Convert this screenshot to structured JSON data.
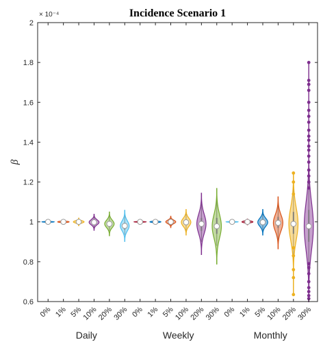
{
  "chart_data": {
    "type": "violin",
    "title": "Incidence Scenario 1",
    "ylabel": "β",
    "y_exponent": "× 10⁻⁴",
    "ylim": [
      0.6,
      2.0
    ],
    "yticks": [
      0.6,
      0.8,
      1,
      1.2,
      1.4,
      1.6,
      1.8,
      2
    ],
    "ytick_labels": [
      "0.6",
      "0.8",
      "1",
      "1.2",
      "1.4",
      "1.6",
      "1.8",
      "2"
    ],
    "grid": false,
    "groups": [
      "Daily",
      "Weekly",
      "Monthly"
    ],
    "categories": [
      "0%",
      "1%",
      "5%",
      "10%",
      "20%",
      "30%",
      "0%",
      "1%",
      "5%",
      "10%",
      "20%",
      "30%",
      "0%",
      "1%",
      "5%",
      "10%",
      "20%",
      "30%"
    ],
    "series": [
      {
        "group": "Daily",
        "noise": "0%",
        "median": 1.0,
        "q1": 0.999,
        "q3": 1.001,
        "min": 0.995,
        "max": 1.005,
        "width": 0.8,
        "color": "#0072BD"
      },
      {
        "group": "Daily",
        "noise": "1%",
        "median": 1.0,
        "q1": 0.998,
        "q3": 1.002,
        "min": 0.994,
        "max": 1.006,
        "width": 0.75,
        "color": "#D95319"
      },
      {
        "group": "Daily",
        "noise": "5%",
        "median": 1.0,
        "q1": 0.996,
        "q3": 1.004,
        "min": 0.988,
        "max": 1.012,
        "width": 0.7,
        "color": "#EDB120"
      },
      {
        "group": "Daily",
        "noise": "10%",
        "median": 0.998,
        "q1": 0.99,
        "q3": 1.007,
        "min": 0.972,
        "max": 1.025,
        "width": 0.65,
        "color": "#7E2F8E"
      },
      {
        "group": "Daily",
        "noise": "20%",
        "median": 0.99,
        "q1": 0.975,
        "q3": 1.0,
        "min": 0.955,
        "max": 1.035,
        "width": 0.62,
        "color": "#77AC30"
      },
      {
        "group": "Daily",
        "noise": "30%",
        "median": 0.98,
        "q1": 0.962,
        "q3": 0.995,
        "min": 0.935,
        "max": 1.04,
        "width": 0.58,
        "color": "#4DBEEE"
      },
      {
        "group": "Weekly",
        "noise": "0%",
        "median": 1.0,
        "q1": 0.999,
        "q3": 1.001,
        "min": 0.994,
        "max": 1.006,
        "width": 0.78,
        "color": "#A2142F"
      },
      {
        "group": "Weekly",
        "noise": "1%",
        "median": 1.0,
        "q1": 0.998,
        "q3": 1.002,
        "min": 0.993,
        "max": 1.007,
        "width": 0.72,
        "color": "#0072BD"
      },
      {
        "group": "Weekly",
        "noise": "5%",
        "median": 1.0,
        "q1": 0.994,
        "q3": 1.006,
        "min": 0.98,
        "max": 1.022,
        "width": 0.65,
        "color": "#D95319"
      },
      {
        "group": "Weekly",
        "noise": "10%",
        "median": 0.998,
        "q1": 0.985,
        "q3": 1.012,
        "min": 0.955,
        "max": 1.045,
        "width": 0.62,
        "color": "#EDB120"
      },
      {
        "group": "Weekly",
        "noise": "20%",
        "median": 0.99,
        "q1": 0.955,
        "q3": 1.02,
        "min": 0.9,
        "max": 1.09,
        "width": 0.6,
        "color": "#7E2F8E"
      },
      {
        "group": "Weekly",
        "noise": "30%",
        "median": 0.978,
        "q1": 0.94,
        "q3": 1.02,
        "min": 0.88,
        "max": 1.12,
        "width": 0.6,
        "color": "#77AC30"
      },
      {
        "group": "Monthly",
        "noise": "0%",
        "median": 1.0,
        "q1": 0.999,
        "q3": 1.001,
        "min": 0.994,
        "max": 1.006,
        "width": 0.78,
        "color": "#4DBEEE"
      },
      {
        "group": "Monthly",
        "noise": "1%",
        "median": 1.0,
        "q1": 0.997,
        "q3": 1.003,
        "min": 0.99,
        "max": 1.01,
        "width": 0.72,
        "color": "#A2142F"
      },
      {
        "group": "Monthly",
        "noise": "5%",
        "median": 0.998,
        "q1": 0.985,
        "q3": 1.012,
        "min": 0.955,
        "max": 1.045,
        "width": 0.65,
        "color": "#0072BD"
      },
      {
        "group": "Monthly",
        "noise": "10%",
        "median": 0.995,
        "q1": 0.97,
        "q3": 1.025,
        "min": 0.9,
        "max": 1.1,
        "width": 0.62,
        "color": "#D95319"
      },
      {
        "group": "Monthly",
        "noise": "20%",
        "median": 0.99,
        "q1": 0.94,
        "q3": 1.05,
        "min": 0.635,
        "max": 1.245,
        "width": 0.6,
        "color": "#EDB120"
      },
      {
        "group": "Monthly",
        "noise": "30%",
        "median": 0.978,
        "q1": 0.9,
        "q3": 1.06,
        "min": 0.615,
        "max": 1.8,
        "width": 0.6,
        "color": "#7E2F8E"
      }
    ],
    "outliers": [
      {
        "index": 16,
        "values": [
          0.635,
          0.72,
          0.76,
          0.83,
          0.87,
          1.14,
          1.2,
          1.245
        ]
      },
      {
        "index": 17,
        "values": [
          0.615,
          0.63,
          0.65,
          0.67,
          0.7,
          0.74,
          0.77,
          0.79,
          1.17,
          1.2,
          1.23,
          1.26,
          1.3,
          1.33,
          1.36,
          1.38,
          1.41,
          1.43,
          1.46,
          1.5,
          1.53,
          1.56,
          1.6,
          1.66,
          1.69,
          1.71,
          1.8
        ]
      }
    ]
  }
}
